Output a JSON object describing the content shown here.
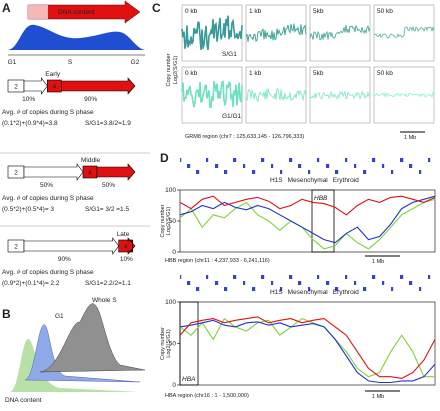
{
  "panel_a": {
    "label": "A",
    "dna_content": "DNA content",
    "phases": [
      "G1",
      "S",
      "G2"
    ],
    "avg_text": "Avg. # of copies during S phase",
    "early": {
      "title": "Early",
      "box_left": "2",
      "box_right": "4",
      "pct_left": "10%",
      "pct_right": "90%",
      "formula": "(0.1*2)+(0.9*4)=3.8",
      "ratio": "S/G1=3.8/2=1.9"
    },
    "middle": {
      "title": "Middle",
      "box_left": "2",
      "box_right": "4",
      "pct_left": "50%",
      "pct_right": "50%",
      "formula": "(0.5*2)+(0.5*4)= 3",
      "ratio": "S/G1= 3/2 =1.5"
    },
    "late": {
      "title": "Late",
      "box_left": "2",
      "box_right": "4",
      "pct_left": "90%",
      "pct_right": "10%",
      "formula": "(0.9*2)+(0.1*4)= 2.2",
      "ratio": "S/G1=2.2/2=1.1"
    }
  },
  "panel_b": {
    "label": "B",
    "g1": "G1",
    "whole_s": "Whole S",
    "dna_content": "DNA content"
  },
  "panel_c": {
    "label": "C",
    "y_label": "Copy number",
    "y_sub": "Log2(S/G1)",
    "bins": [
      "0 kb",
      "1 kb",
      "5kb",
      "50 kb"
    ],
    "row_labels": [
      "S/G1",
      "G1/G1"
    ],
    "region": "GRM8 region (chr7 : 125,633,145 - 126,796,333)",
    "scale": "1 Mb"
  },
  "panel_d": {
    "label": "D",
    "y_label": "Copy number",
    "y_sub": "Log2(S/G1)",
    "charts": [
      {
        "gene": "HBB",
        "region": "HBB region (chr11 : 4,237,933 - 6,241,116)",
        "scale": "1 Mb",
        "ylim": [
          0,
          100
        ],
        "yticks": [
          0,
          50,
          100
        ],
        "series": [
          {
            "name": "H1S",
            "color": "#7fd13b",
            "values": [
              55,
              70,
              40,
              60,
              55,
              70,
              80,
              60,
              50,
              35,
              50,
              40,
              20,
              5,
              10,
              30,
              15,
              5,
              20,
              40,
              60,
              70,
              80,
              85
            ]
          },
          {
            "name": "Mesenchymal",
            "color": "#2233cc",
            "values": [
              60,
              65,
              75,
              70,
              80,
              72,
              68,
              75,
              70,
              60,
              50,
              40,
              30,
              20,
              15,
              30,
              40,
              20,
              25,
              45,
              70,
              80,
              85,
              90
            ]
          },
          {
            "name": "Erythroid",
            "color": "#dd1111",
            "values": [
              80,
              70,
              85,
              90,
              75,
              80,
              85,
              88,
              82,
              70,
              75,
              85,
              80,
              78,
              72,
              60,
              75,
              85,
              80,
              88,
              90,
              85,
              80,
              88
            ]
          }
        ]
      },
      {
        "gene": "HBA",
        "region": "HBA region (chr16 : 1 - 1,500,000)",
        "scale": "1 Mb",
        "ylim": [
          0,
          100
        ],
        "yticks": [
          0,
          50,
          100
        ],
        "series": [
          {
            "name": "H1S",
            "color": "#7fd13b",
            "values": [
              70,
              60,
              75,
              55,
              80,
              70,
              65,
              75,
              78,
              60,
              70,
              80,
              75,
              70,
              55,
              40,
              20,
              10,
              15,
              40,
              60,
              40,
              10,
              10
            ]
          },
          {
            "name": "Mesenchymal",
            "color": "#2233cc",
            "values": [
              70,
              72,
              75,
              78,
              72,
              70,
              75,
              76,
              72,
              75,
              70,
              72,
              74,
              70,
              55,
              35,
              15,
              5,
              3,
              3,
              5,
              5,
              10,
              25
            ]
          },
          {
            "name": "Erythroid",
            "color": "#dd1111",
            "values": [
              60,
              75,
              78,
              80,
              75,
              78,
              80,
              82,
              75,
              78,
              80,
              75,
              78,
              80,
              70,
              60,
              40,
              20,
              10,
              10,
              8,
              15,
              30,
              55
            ]
          }
        ]
      }
    ]
  }
}
